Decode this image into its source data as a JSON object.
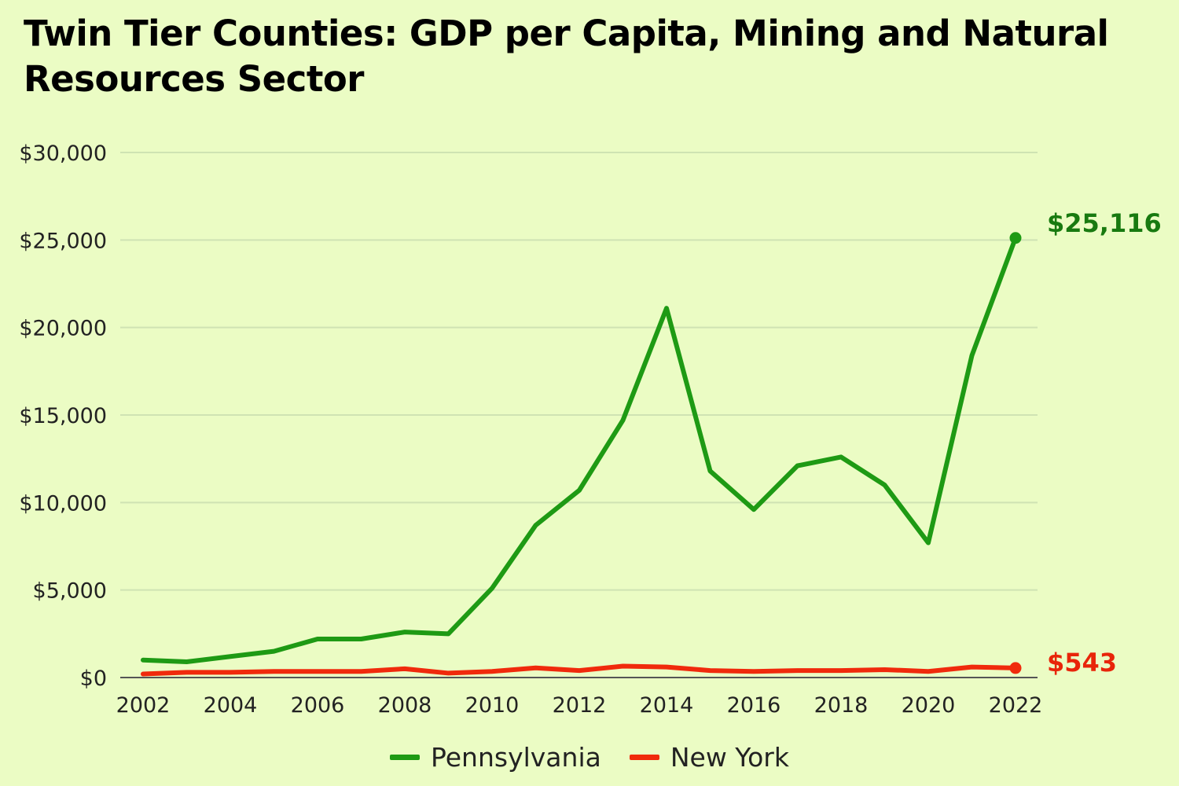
{
  "chart_data": {
    "type": "line",
    "title": "Twin Tier Counties: GDP per Capita, Mining and Natural Resources Sector",
    "xlabel": "",
    "ylabel": "",
    "x": [
      2002,
      2003,
      2004,
      2005,
      2006,
      2007,
      2008,
      2009,
      2010,
      2011,
      2012,
      2013,
      2014,
      2015,
      2016,
      2017,
      2018,
      2019,
      2020,
      2021,
      2022
    ],
    "x_ticks": [
      "2002",
      "2004",
      "2006",
      "2008",
      "2010",
      "2012",
      "2014",
      "2016",
      "2018",
      "2020",
      "2022"
    ],
    "y_ticks": [
      "$0",
      "$5,000",
      "$10,000",
      "$15,000",
      "$20,000",
      "$25,000",
      "$30,000"
    ],
    "xlim": [
      2002,
      2022
    ],
    "ylim": [
      0,
      30000
    ],
    "grid": true,
    "legend_position": "bottom-center",
    "series": [
      {
        "name": "Pennsylvania",
        "color": "#1e9a14",
        "label_color": "#187a10",
        "end_label": "$25,116",
        "values": [
          1000,
          900,
          1200,
          1500,
          2200,
          2200,
          2600,
          2500,
          5100,
          8700,
          10700,
          14700,
          21100,
          11800,
          9600,
          12100,
          12600,
          11000,
          7700,
          18400,
          25116
        ]
      },
      {
        "name": "New York",
        "color": "#f02a0c",
        "label_color": "#e8250a",
        "end_label": "$543",
        "values": [
          200,
          300,
          300,
          350,
          350,
          350,
          500,
          250,
          350,
          550,
          400,
          650,
          600,
          400,
          350,
          400,
          400,
          450,
          350,
          600,
          543
        ]
      }
    ]
  }
}
